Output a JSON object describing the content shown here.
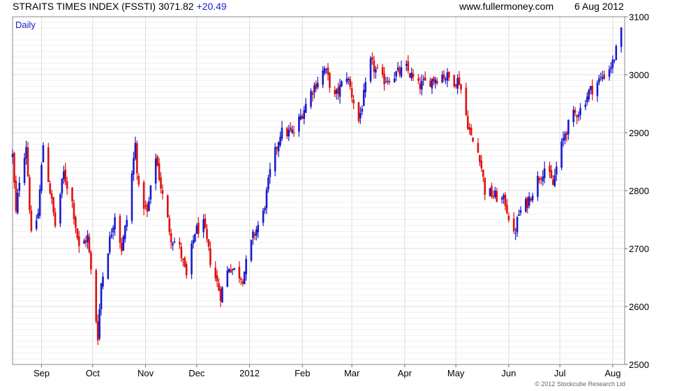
{
  "header": {
    "index_label": "STRAITS TIMES INDEX (FSSTI)",
    "last": "3071.82",
    "change": "+20.49",
    "site": "www.fullermoney.com",
    "date": "6 Aug 2012"
  },
  "footer": {
    "copyright": "© 2012 Stockcube Research Ltd"
  },
  "chart_data": {
    "type": "bar",
    "subtype": "OHLC daily price bars (blue = up day, red = down day)",
    "title": "STRAITS TIMES INDEX (FSSTI) 3071.82 +20.49",
    "period_label": "Daily",
    "xlabel": "",
    "ylabel": "",
    "y_axis_side": "right",
    "ylim": [
      2500,
      3100
    ],
    "y_ticks": [
      2500,
      2600,
      2700,
      2800,
      2900,
      3000,
      3100
    ],
    "x_tick_labels": [
      "Sep",
      "Oct",
      "Nov",
      "Dec",
      "2012",
      "Feb",
      "Mar",
      "Apr",
      "May",
      "Jun",
      "Jul",
      "Aug"
    ],
    "x_range": [
      "2011-08-15",
      "2012-08-08"
    ],
    "grid": true,
    "colors": {
      "up": "#1a1acc",
      "down": "#e01010",
      "grid": "#dddddd",
      "frame": "#888888"
    },
    "anchors": [
      [
        "2011-08-15",
        2860
      ],
      [
        "2011-08-17",
        2760
      ],
      [
        "2011-08-19",
        2820
      ],
      [
        "2011-08-23",
        2880
      ],
      [
        "2011-08-26",
        2720
      ],
      [
        "2011-08-30",
        2760
      ],
      [
        "2011-09-02",
        2880
      ],
      [
        "2011-09-06",
        2800
      ],
      [
        "2011-09-09",
        2740
      ],
      [
        "2011-09-14",
        2830
      ],
      [
        "2011-09-19",
        2780
      ],
      [
        "2011-09-23",
        2700
      ],
      [
        "2011-09-28",
        2720
      ],
      [
        "2011-09-30",
        2660
      ],
      [
        "2011-10-04",
        2550
      ],
      [
        "2011-10-06",
        2640
      ],
      [
        "2011-10-10",
        2700
      ],
      [
        "2011-10-14",
        2760
      ],
      [
        "2011-10-18",
        2700
      ],
      [
        "2011-10-21",
        2750
      ],
      [
        "2011-10-26",
        2880
      ],
      [
        "2011-10-28",
        2800
      ],
      [
        "2011-11-02",
        2760
      ],
      [
        "2011-11-07",
        2860
      ],
      [
        "2011-11-11",
        2790
      ],
      [
        "2011-11-16",
        2720
      ],
      [
        "2011-11-21",
        2700
      ],
      [
        "2011-11-25",
        2650
      ],
      [
        "2011-11-30",
        2730
      ],
      [
        "2011-12-05",
        2740
      ],
      [
        "2011-12-09",
        2680
      ],
      [
        "2011-12-15",
        2620
      ],
      [
        "2011-12-20",
        2670
      ],
      [
        "2011-12-28",
        2650
      ],
      [
        "2012-01-03",
        2720
      ],
      [
        "2012-01-09",
        2760
      ],
      [
        "2012-01-13",
        2830
      ],
      [
        "2012-01-19",
        2900
      ],
      [
        "2012-01-27",
        2900
      ],
      [
        "2012-02-06",
        2970
      ],
      [
        "2012-02-14",
        3010
      ],
      [
        "2012-02-20",
        2960
      ],
      [
        "2012-02-27",
        3000
      ],
      [
        "2012-03-05",
        2920
      ],
      [
        "2012-03-12",
        3020
      ],
      [
        "2012-03-19",
        2990
      ],
      [
        "2012-03-26",
        3000
      ],
      [
        "2012-04-02",
        3010
      ],
      [
        "2012-04-09",
        2980
      ],
      [
        "2012-04-16",
        2990
      ],
      [
        "2012-04-23",
        3000
      ],
      [
        "2012-04-30",
        2990
      ],
      [
        "2012-05-03",
        2990
      ],
      [
        "2012-05-07",
        2930
      ],
      [
        "2012-05-10",
        2890
      ],
      [
        "2012-05-15",
        2860
      ],
      [
        "2012-05-18",
        2800
      ],
      [
        "2012-05-24",
        2790
      ],
      [
        "2012-05-30",
        2780
      ],
      [
        "2012-06-04",
        2720
      ],
      [
        "2012-06-07",
        2760
      ],
      [
        "2012-06-12",
        2780
      ],
      [
        "2012-06-18",
        2820
      ],
      [
        "2012-06-22",
        2840
      ],
      [
        "2012-06-27",
        2810
      ],
      [
        "2012-06-29",
        2840
      ],
      [
        "2012-07-04",
        2900
      ],
      [
        "2012-07-09",
        2930
      ],
      [
        "2012-07-13",
        2940
      ],
      [
        "2012-07-18",
        2970
      ],
      [
        "2012-07-24",
        2990
      ],
      [
        "2012-07-27",
        3000
      ],
      [
        "2012-08-01",
        3020
      ],
      [
        "2012-08-06",
        3072
      ]
    ]
  }
}
